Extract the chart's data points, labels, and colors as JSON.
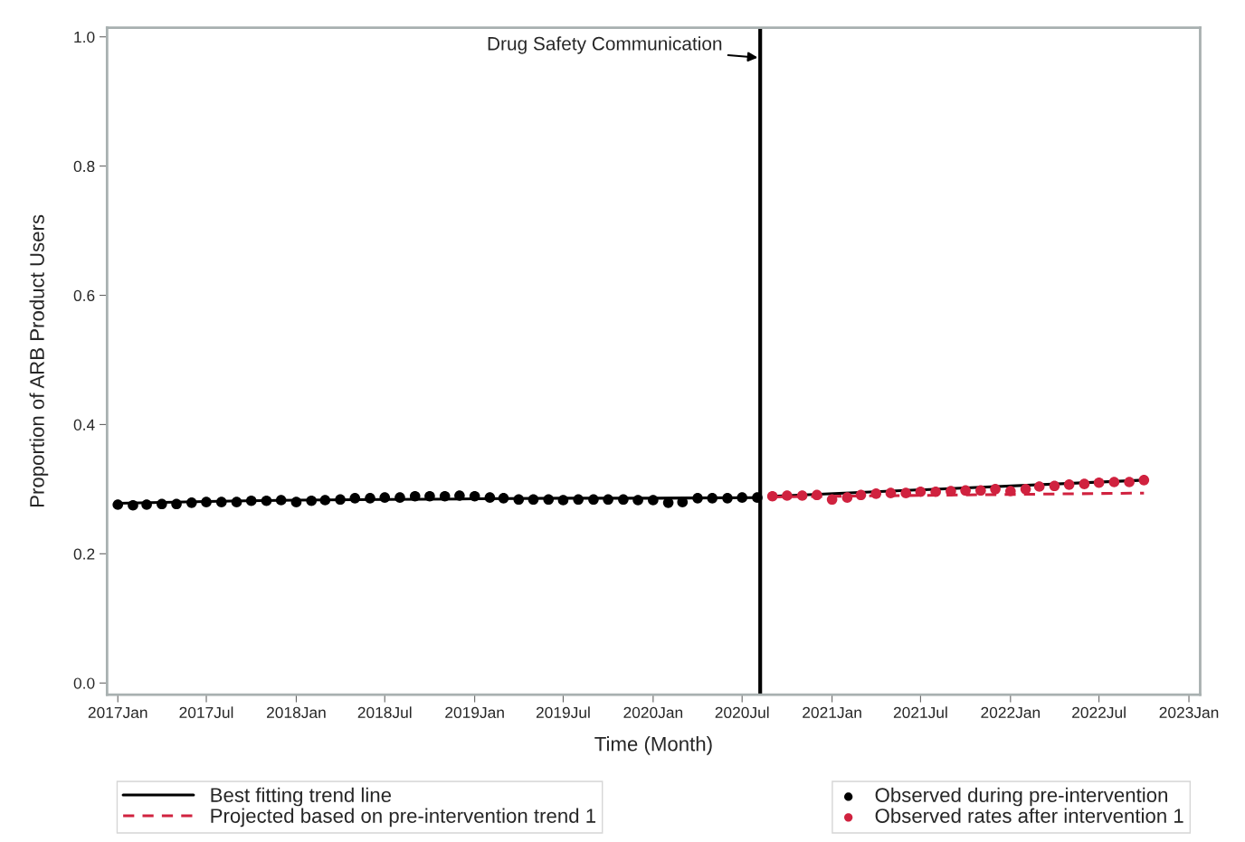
{
  "chart_data": {
    "type": "scatter",
    "xlabel": "Time (Month)",
    "ylabel": "Proportion of ARB Product Users",
    "xlim": [
      "2016-12-10",
      "2023-01-24"
    ],
    "ylim": [
      -0.018,
      1.014
    ],
    "xticks": [
      {
        "value": "2017-01",
        "label": "2017Jan"
      },
      {
        "value": "2017-07",
        "label": "2017Jul"
      },
      {
        "value": "2018-01",
        "label": "2018Jan"
      },
      {
        "value": "2018-07",
        "label": "2018Jul"
      },
      {
        "value": "2019-01",
        "label": "2019Jan"
      },
      {
        "value": "2019-07",
        "label": "2019Jul"
      },
      {
        "value": "2020-01",
        "label": "2020Jan"
      },
      {
        "value": "2020-07",
        "label": "2020Jul"
      },
      {
        "value": "2021-01",
        "label": "2021Jan"
      },
      {
        "value": "2021-07",
        "label": "2021Jul"
      },
      {
        "value": "2022-01",
        "label": "2022Jan"
      },
      {
        "value": "2022-07",
        "label": "2022Jul"
      },
      {
        "value": "2023-01",
        "label": "2023Jan"
      }
    ],
    "yticks": [
      {
        "value": 0,
        "label": "0.0"
      },
      0.2,
      0.4,
      0.6,
      0.8,
      {
        "value": 1,
        "label": "1.0"
      }
    ],
    "grid": false,
    "legend": "bottom",
    "ref_lines": [
      {
        "axis": "x",
        "value": "2020-08-07",
        "label": "Drug Safety Communication",
        "color": "#000000",
        "line_style": "solid"
      }
    ],
    "series": [
      {
        "name": "Best fitting trend line",
        "type": "line",
        "color": "#000000",
        "line_style": "solid",
        "marker": "none",
        "x": [
          "2017-01",
          "2017-07",
          "2018-01",
          "2018-07",
          "2019-01",
          "2019-07",
          "2020-01",
          "2020-08"
        ],
        "values": [
          0.278,
          0.281,
          0.283,
          0.284,
          0.285,
          0.286,
          0.286,
          0.287
        ]
      },
      {
        "type": "line",
        "color": "#000000",
        "line_style": "solid",
        "marker": "none",
        "x": [
          "2020-09",
          "2022-10"
        ],
        "values": [
          0.289,
          0.314
        ]
      },
      {
        "name": "Projected based on pre-intervention trend 1",
        "type": "line",
        "color": "#d0223f",
        "line_style": "dashed",
        "marker": "none",
        "x": [
          "2020-09",
          "2022-10"
        ],
        "values": [
          0.288,
          0.294
        ]
      },
      {
        "name": "Observed during pre-intervention",
        "color": "#000000",
        "marker": "circle",
        "x": [
          "2017-01",
          "2017-02",
          "2017-03",
          "2017-04",
          "2017-05",
          "2017-06",
          "2017-07",
          "2017-08",
          "2017-09",
          "2017-10",
          "2017-11",
          "2017-12",
          "2018-01",
          "2018-02",
          "2018-03",
          "2018-04",
          "2018-05",
          "2018-06",
          "2018-07",
          "2018-08",
          "2018-09",
          "2018-10",
          "2018-11",
          "2018-12",
          "2019-01",
          "2019-02",
          "2019-03",
          "2019-04",
          "2019-05",
          "2019-06",
          "2019-07",
          "2019-08",
          "2019-09",
          "2019-10",
          "2019-11",
          "2019-12",
          "2020-01",
          "2020-02",
          "2020-03",
          "2020-04",
          "2020-05",
          "2020-06",
          "2020-07",
          "2020-08"
        ],
        "values": [
          0.276,
          0.275,
          0.276,
          0.277,
          0.277,
          0.279,
          0.28,
          0.28,
          0.28,
          0.282,
          0.282,
          0.283,
          0.28,
          0.282,
          0.283,
          0.284,
          0.286,
          0.286,
          0.287,
          0.287,
          0.289,
          0.289,
          0.289,
          0.29,
          0.289,
          0.287,
          0.286,
          0.284,
          0.284,
          0.284,
          0.283,
          0.284,
          0.284,
          0.284,
          0.284,
          0.283,
          0.283,
          0.279,
          0.28,
          0.286,
          0.286,
          0.286,
          0.287,
          0.287
        ]
      },
      {
        "name": "Observed rates after intervention 1",
        "color": "#d0223f",
        "marker": "circle",
        "x": [
          "2020-09",
          "2020-10",
          "2020-11",
          "2020-12",
          "2021-01",
          "2021-02",
          "2021-03",
          "2021-04",
          "2021-05",
          "2021-06",
          "2021-07",
          "2021-08",
          "2021-09",
          "2021-10",
          "2021-11",
          "2021-12",
          "2022-01",
          "2022-02",
          "2022-03",
          "2022-04",
          "2022-05",
          "2022-06",
          "2022-07",
          "2022-08",
          "2022-09",
          "2022-10"
        ],
        "values": [
          0.289,
          0.29,
          0.29,
          0.291,
          0.284,
          0.287,
          0.291,
          0.293,
          0.294,
          0.294,
          0.296,
          0.296,
          0.297,
          0.298,
          0.298,
          0.3,
          0.297,
          0.3,
          0.304,
          0.305,
          0.307,
          0.308,
          0.31,
          0.311,
          0.311,
          0.314
        ]
      }
    ]
  }
}
